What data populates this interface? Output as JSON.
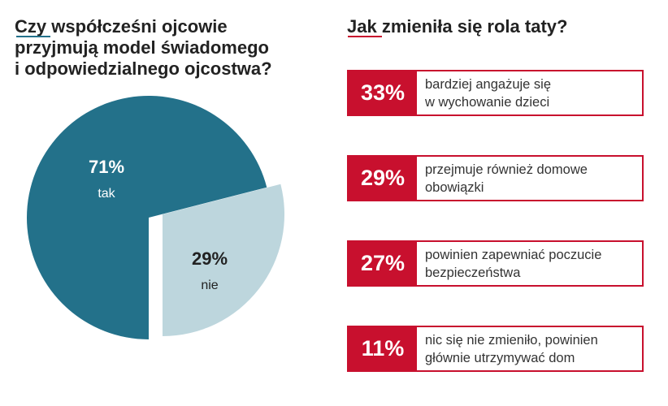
{
  "chart_data": [
    {
      "type": "pie",
      "title": "Czy współcześni ojcowie przyjmują model świadomego i odpowiedzialnego ojcostwa?",
      "slices": [
        {
          "label": "tak",
          "value": 71,
          "value_label": "71%",
          "color": "#23718a"
        },
        {
          "label": "nie",
          "value": 29,
          "value_label": "29%",
          "color": "#bdd6dd"
        }
      ]
    },
    {
      "type": "bar",
      "title": "Jak zmieniła się rola taty?",
      "items": [
        {
          "value": 33,
          "value_label": "33%",
          "label": "bardziej angażuje się w wychowanie dzieci",
          "lines": [
            "bardziej angażuje się",
            "w wychowanie dzieci"
          ]
        },
        {
          "value": 29,
          "value_label": "29%",
          "label": "przejmuje również domowe obowiązki",
          "lines": [
            "przejmuje również domowe",
            "obowiązki"
          ]
        },
        {
          "value": 27,
          "value_label": "27%",
          "label": "powinien zapewniać poczucie bezpieczeństwa",
          "lines": [
            "powinien zapewniać poczucie",
            "bezpieczeństwa"
          ]
        },
        {
          "value": 11,
          "value_label": "11%",
          "label": "nic się nie zmieniło, powinien głównie utrzymywać dom",
          "lines": [
            "nic się nie zmieniło, powinien",
            "głównie utrzymywać dom"
          ]
        }
      ]
    }
  ],
  "left_title_lines": [
    "Czy współcześni ojcowie",
    "przyjmują model świadomego",
    "i odpowiedzialnego ojcostwa?"
  ],
  "right_title": "Jak zmieniła się rola taty?",
  "colors": {
    "accent": "#c8102e",
    "teal": "#23718a",
    "light": "#bdd6dd"
  }
}
